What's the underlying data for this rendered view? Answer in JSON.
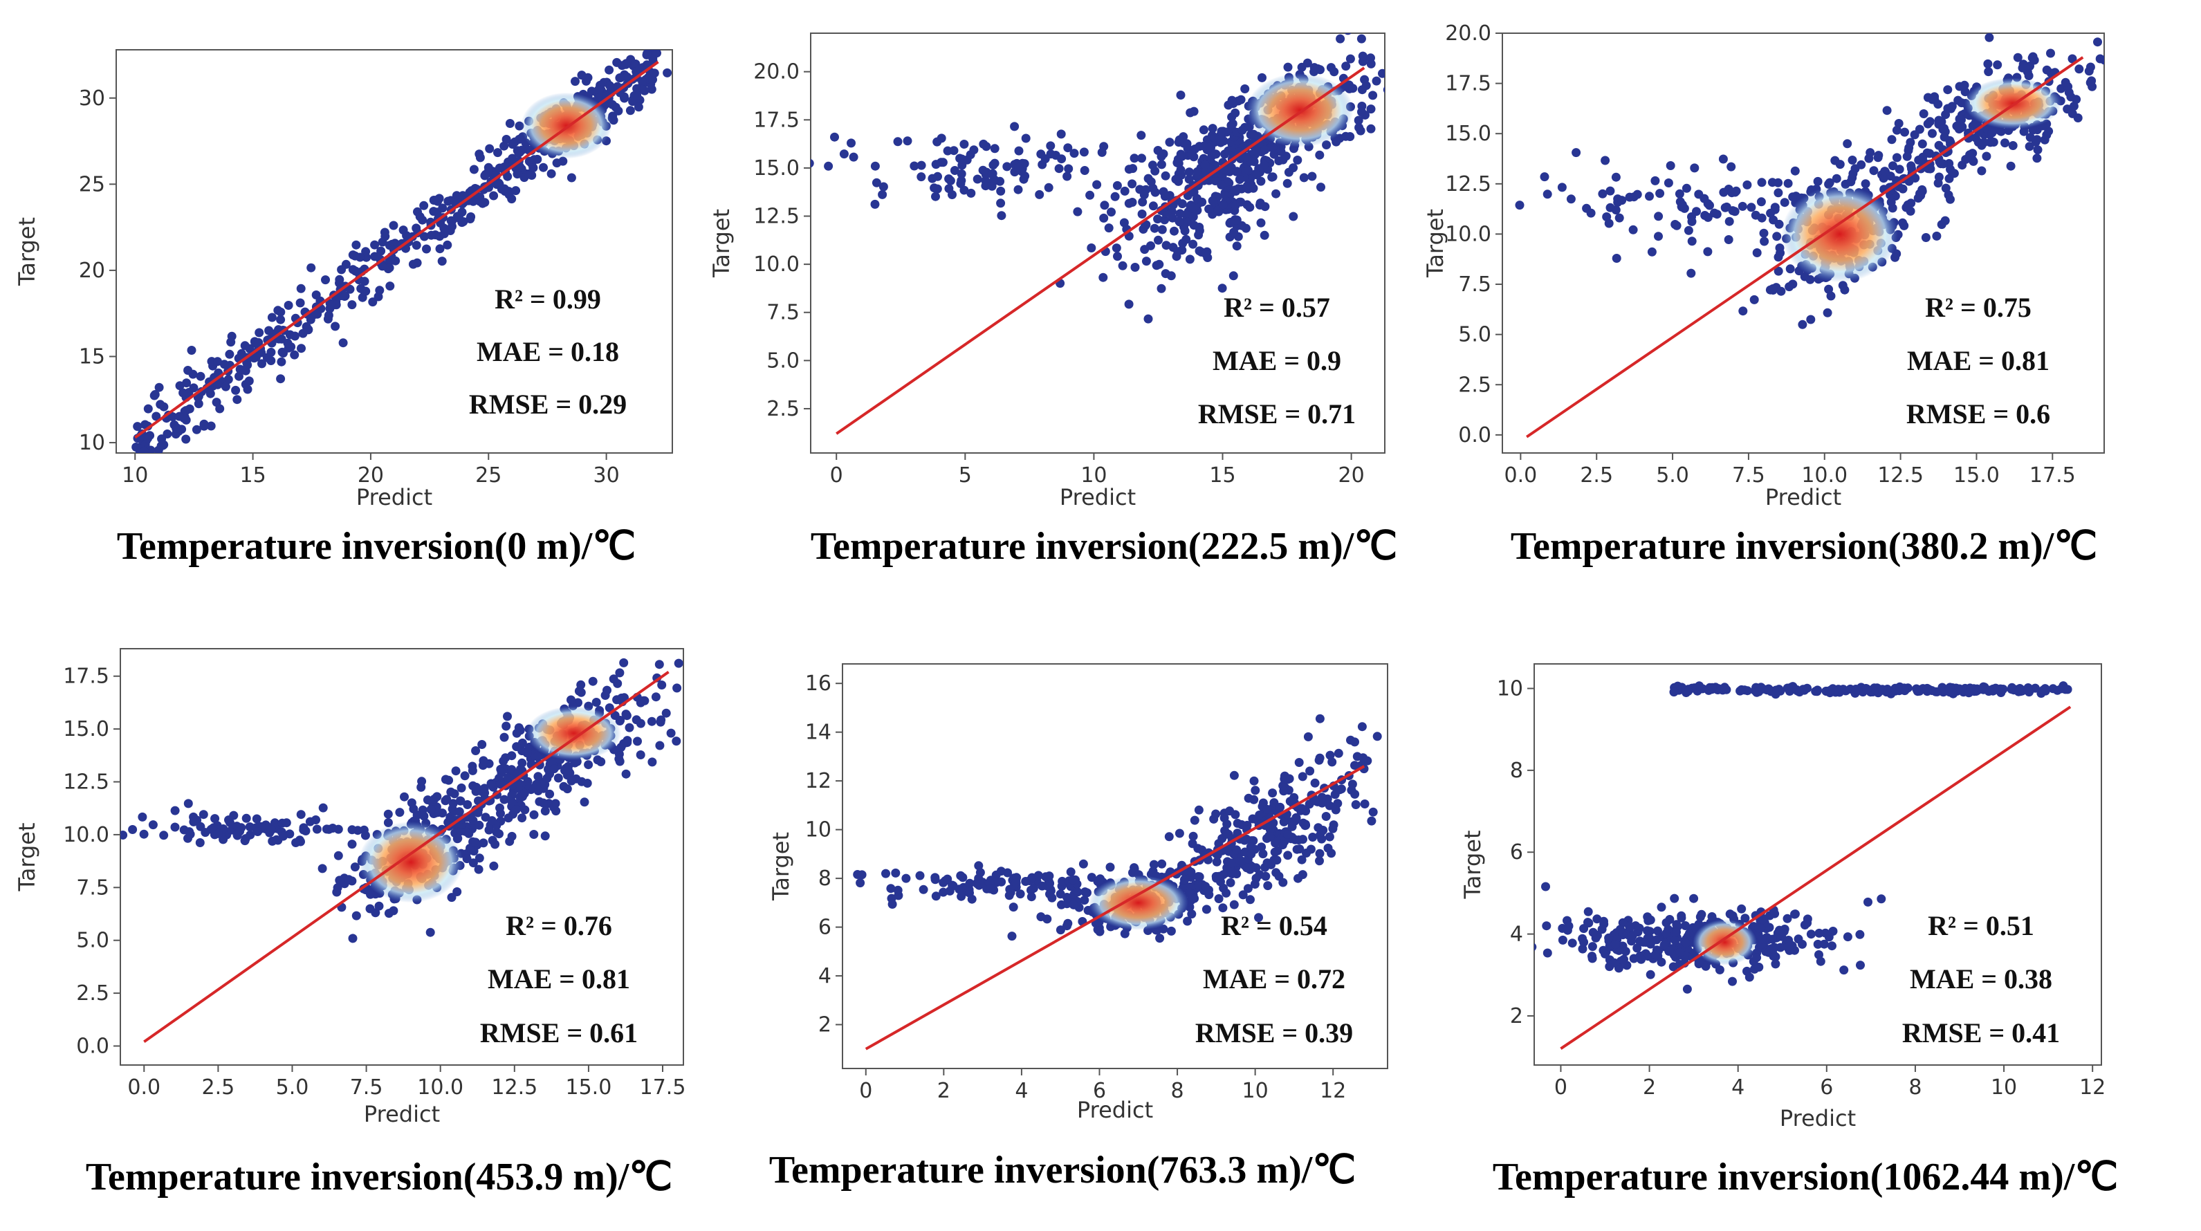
{
  "chart_data": [
    {
      "type": "scatter",
      "title": "Temperature inversion(0 m)/℃",
      "xlabel": "Predict",
      "ylabel": "Target",
      "xlim": [
        9.2,
        32.8
      ],
      "ylim": [
        9.4,
        32.8
      ],
      "xticks": [
        10,
        15,
        20,
        25,
        30
      ],
      "xtick_labels": [
        "10",
        "15",
        "20",
        "25",
        "30"
      ],
      "yticks": [
        10,
        15,
        20,
        25,
        30
      ],
      "ytick_labels": [
        "10",
        "15",
        "20",
        "25",
        "30"
      ],
      "fit_line": [
        [
          10,
          10.3
        ],
        [
          32.2,
          32.1
        ]
      ],
      "density_peak": [
        28.3,
        28.4
      ],
      "density_spread": [
        1.2,
        1.2
      ],
      "clusters": [
        {
          "x": [
            10,
            32
          ],
          "slope": 1.0,
          "intercept": 0,
          "noise": 0.9,
          "n": 440,
          "spread_curve": 0.3
        },
        {
          "cx": 28.3,
          "cy": 28.4,
          "sx": 2.0,
          "sy": 1.8,
          "corr": 0.85,
          "n": 160
        }
      ],
      "metrics": {
        "r2": "R² = 0.99",
        "mae": "MAE = 0.18",
        "rmse": "RMSE = 0.29"
      }
    },
    {
      "type": "scatter",
      "title": "Temperature inversion(222.5 m)/℃",
      "xlabel": "Predict",
      "ylabel": "Target",
      "xlim": [
        -1.0,
        21.3
      ],
      "ylim": [
        0.2,
        22.0
      ],
      "xticks": [
        0,
        5,
        10,
        15,
        20
      ],
      "xtick_labels": [
        "0",
        "5",
        "10",
        "15",
        "20"
      ],
      "yticks": [
        2.5,
        5,
        7.5,
        10,
        12.5,
        15,
        17.5,
        20
      ],
      "ytick_labels": [
        "2.5",
        "5.0",
        "7.5",
        "10.0",
        "12.5",
        "15.0",
        "17.5",
        "20.0"
      ],
      "fit_line": [
        [
          0,
          1.2
        ],
        [
          20.5,
          20.2
        ]
      ],
      "density_peak": [
        18.0,
        18.0
      ],
      "density_spread": [
        1.3,
        1.2
      ],
      "clusters": [
        {
          "cx": 17.5,
          "cy": 17.5,
          "sx": 1.9,
          "sy": 1.6,
          "corr": 0.6,
          "n": 300
        },
        {
          "cx": 14.2,
          "cy": 13.8,
          "sx": 1.8,
          "sy": 2.0,
          "corr": 0.5,
          "n": 300
        },
        {
          "cx": 6.0,
          "cy": 15.0,
          "sx": 3.3,
          "sy": 0.9,
          "corr": 0.0,
          "n": 110
        }
      ],
      "metrics": {
        "r2": "R² = 0.57",
        "mae": "MAE = 0.9",
        "rmse": "RMSE = 0.71"
      }
    },
    {
      "type": "scatter",
      "title": "Temperature inversion(380.2 m)/℃",
      "xlabel": "Predict",
      "ylabel": "Target",
      "xlim": [
        -0.6,
        19.2
      ],
      "ylim": [
        -0.9,
        20.0
      ],
      "xticks": [
        0,
        2.5,
        5,
        7.5,
        10,
        12.5,
        15,
        17.5
      ],
      "xtick_labels": [
        "0.0",
        "2.5",
        "5.0",
        "7.5",
        "10.0",
        "12.5",
        "15.0",
        "17.5"
      ],
      "yticks": [
        0,
        2.5,
        5,
        7.5,
        10,
        12.5,
        15,
        17.5,
        20
      ],
      "ytick_labels": [
        "0.0",
        "2.5",
        "5.0",
        "7.5",
        "10.0",
        "12.5",
        "15.0",
        "17.5",
        "20.0"
      ],
      "fit_line": [
        [
          0.2,
          -0.1
        ],
        [
          18.5,
          18.8
        ]
      ],
      "density_peak": [
        10.5,
        10.0
      ],
      "density_spread": [
        1.2,
        1.5
      ],
      "secondary_peak": [
        16.2,
        16.5
      ],
      "clusters": [
        {
          "cx": 11.0,
          "cy": 10.5,
          "sx": 1.4,
          "sy": 2.0,
          "corr": 0.6,
          "n": 260
        },
        {
          "cx": 15.5,
          "cy": 15.7,
          "sx": 1.6,
          "sy": 1.6,
          "corr": 0.6,
          "n": 260
        },
        {
          "cx": 6.0,
          "cy": 11.5,
          "sx": 3.2,
          "sy": 1.0,
          "corr": 0.0,
          "n": 120
        }
      ],
      "metrics": {
        "r2": "R² = 0.75",
        "mae": "MAE = 0.81",
        "rmse": "RMSE = 0.6"
      }
    },
    {
      "type": "scatter",
      "title": "Temperature inversion(453.9 m)/℃",
      "xlabel": "Predict",
      "ylabel": "Target",
      "xlim": [
        -0.8,
        18.2
      ],
      "ylim": [
        -0.9,
        18.8
      ],
      "xticks": [
        0,
        2.5,
        5,
        7.5,
        10,
        12.5,
        15,
        17.5
      ],
      "xtick_labels": [
        "0.0",
        "2.5",
        "5.0",
        "7.5",
        "10.0",
        "12.5",
        "15.0",
        "17.5"
      ],
      "yticks": [
        0,
        2.5,
        5,
        7.5,
        10,
        12.5,
        15,
        17.5
      ],
      "ytick_labels": [
        "0.0",
        "2.5",
        "5.0",
        "7.5",
        "10.0",
        "12.5",
        "15.0",
        "17.5"
      ],
      "fit_line": [
        [
          0,
          0.2
        ],
        [
          17.7,
          17.7
        ]
      ],
      "density_peak": [
        9.0,
        8.7
      ],
      "density_spread": [
        1.1,
        1.2
      ],
      "secondary_peak": [
        14.5,
        14.8
      ],
      "clusters": [
        {
          "cx": 9.5,
          "cy": 9.3,
          "sx": 1.5,
          "sy": 1.5,
          "corr": 0.6,
          "n": 260
        },
        {
          "cx": 13.8,
          "cy": 13.6,
          "sx": 1.8,
          "sy": 1.8,
          "corr": 0.7,
          "n": 280
        },
        {
          "cx": 3.5,
          "cy": 10.2,
          "sx": 2.2,
          "sy": 0.4,
          "corr": 0.0,
          "n": 90
        }
      ],
      "metrics": {
        "r2": "R² = 0.76",
        "mae": "MAE = 0.81",
        "rmse": "RMSE = 0.61"
      }
    },
    {
      "type": "scatter",
      "title": "Temperature inversion(763.3 m)/℃",
      "xlabel": "Predict",
      "ylabel": "Target",
      "xlim": [
        -0.6,
        13.4
      ],
      "ylim": [
        0.2,
        16.8
      ],
      "xticks": [
        0,
        2,
        4,
        6,
        8,
        10,
        12
      ],
      "xtick_labels": [
        "0",
        "2",
        "4",
        "6",
        "8",
        "10",
        "12"
      ],
      "yticks": [
        2,
        4,
        6,
        8,
        10,
        12,
        14,
        16
      ],
      "ytick_labels": [
        "2",
        "4",
        "6",
        "8",
        "10",
        "12",
        "14",
        "16"
      ],
      "fit_line": [
        [
          0,
          1.0
        ],
        [
          12.8,
          12.6
        ]
      ],
      "density_peak": [
        7.0,
        7.0
      ],
      "density_spread": [
        0.8,
        0.7
      ],
      "clusters": [
        {
          "cx": 7.2,
          "cy": 7.2,
          "sx": 1.2,
          "sy": 0.8,
          "corr": 0.4,
          "n": 240
        },
        {
          "cx": 10.5,
          "cy": 10.2,
          "sx": 1.2,
          "sy": 1.4,
          "corr": 0.6,
          "n": 240
        },
        {
          "cx": 3.5,
          "cy": 7.7,
          "sx": 2.0,
          "sy": 0.35,
          "corr": 0.0,
          "n": 110
        }
      ],
      "metrics": {
        "r2": "R² = 0.54",
        "mae": "MAE = 0.72",
        "rmse": "RMSE = 0.39"
      }
    },
    {
      "type": "scatter",
      "title": "Temperature inversion(1062.44 m)/℃",
      "xlabel": "Predict",
      "ylabel": "Target",
      "xlim": [
        -0.6,
        12.2
      ],
      "ylim": [
        0.8,
        10.6
      ],
      "xticks": [
        0,
        2,
        4,
        6,
        8,
        10,
        12
      ],
      "xtick_labels": [
        "0",
        "2",
        "4",
        "6",
        "8",
        "10",
        "12"
      ],
      "yticks": [
        2,
        4,
        6,
        8,
        10
      ],
      "ytick_labels": [
        "2",
        "4",
        "6",
        "8",
        "10"
      ],
      "fit_line": [
        [
          0,
          1.2
        ],
        [
          11.5,
          9.55
        ]
      ],
      "density_peak": [
        3.7,
        3.8
      ],
      "density_spread": [
        0.45,
        0.35
      ],
      "clusters": [
        {
          "cx": 3.0,
          "cy": 3.9,
          "sx": 1.5,
          "sy": 0.35,
          "corr": 0.0,
          "n": 360
        },
        {
          "band": true,
          "x": [
            2.5,
            11.5
          ],
          "y": 9.97,
          "ny": 0.04,
          "n": 200
        }
      ],
      "metrics": {
        "r2": "R² = 0.51",
        "mae": "MAE = 0.38",
        "rmse": "RMSE = 0.41"
      }
    }
  ],
  "colors": {
    "point": "#283593",
    "fit_line": "#d62728",
    "axes": "#555555",
    "density_hot": "#d7191c",
    "density_warm": "#fdae61",
    "density_cool": "#c6e8f5"
  }
}
